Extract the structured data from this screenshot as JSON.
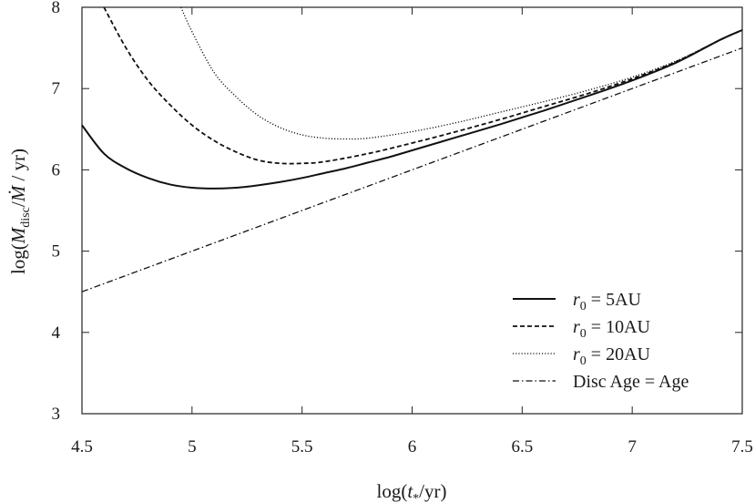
{
  "chart_data": {
    "type": "line",
    "xlabel": "log(t*/yr)",
    "ylabel": "log(M_disc/Ṁ / yr)",
    "xlim": [
      4.5,
      7.5
    ],
    "ylim": [
      3,
      8
    ],
    "xticks": [
      "4.5",
      "5",
      "5.5",
      "6",
      "6.5",
      "7",
      "7.5"
    ],
    "yticks": [
      "3",
      "4",
      "5",
      "6",
      "7",
      "8"
    ],
    "grid": false,
    "legend_position": "bottom-right",
    "series": [
      {
        "name": "r0 = 5AU",
        "style": "solid",
        "x": [
          4.5,
          4.6,
          4.7,
          4.8,
          4.9,
          5.0,
          5.1,
          5.2,
          5.3,
          5.4,
          5.5,
          5.6,
          5.7,
          5.8,
          5.9,
          6.0,
          6.2,
          6.4,
          6.6,
          6.8,
          7.0,
          7.2,
          7.4,
          7.5
        ],
        "y": [
          6.55,
          6.2,
          6.02,
          5.9,
          5.82,
          5.78,
          5.77,
          5.78,
          5.81,
          5.85,
          5.9,
          5.96,
          6.02,
          6.09,
          6.16,
          6.24,
          6.4,
          6.56,
          6.73,
          6.91,
          7.1,
          7.32,
          7.6,
          7.72
        ]
      },
      {
        "name": "r0 = 10AU",
        "style": "dashed",
        "x": [
          4.6,
          4.7,
          4.8,
          4.9,
          5.0,
          5.1,
          5.2,
          5.3,
          5.4,
          5.5,
          5.6,
          5.8,
          6.0,
          6.2,
          6.4,
          6.6,
          6.8,
          7.0,
          7.2,
          7.4,
          7.5
        ],
        "y": [
          8.0,
          7.5,
          7.1,
          6.8,
          6.55,
          6.36,
          6.22,
          6.12,
          6.08,
          6.08,
          6.1,
          6.2,
          6.33,
          6.47,
          6.62,
          6.78,
          6.94,
          7.12,
          7.33,
          7.6,
          7.72
        ]
      },
      {
        "name": "r0 = 20AU",
        "style": "dotted",
        "x": [
          4.95,
          5.0,
          5.1,
          5.2,
          5.3,
          5.4,
          5.5,
          5.6,
          5.7,
          5.8,
          6.0,
          6.2,
          6.4,
          6.6,
          6.8,
          7.0,
          7.2,
          7.4,
          7.5
        ],
        "y": [
          8.0,
          7.7,
          7.2,
          6.9,
          6.67,
          6.52,
          6.43,
          6.39,
          6.38,
          6.39,
          6.47,
          6.58,
          6.71,
          6.84,
          6.98,
          7.14,
          7.34,
          7.6,
          7.72
        ]
      },
      {
        "name": "Disc Age = Age",
        "style": "dashdot",
        "x": [
          4.5,
          7.5
        ],
        "y": [
          4.5,
          7.5
        ]
      }
    ]
  },
  "legend": {
    "items": [
      {
        "prefix": "r",
        "sub": "0",
        "rest": " = 5AU"
      },
      {
        "prefix": "r",
        "sub": "0",
        "rest": " = 10AU"
      },
      {
        "prefix": "r",
        "sub": "0",
        "rest": " = 20AU"
      },
      {
        "prefix": "",
        "sub": "",
        "rest": "Disc Age = Age"
      }
    ]
  },
  "axis_text": {
    "x_pre": "log(",
    "x_var": "t",
    "x_sub": "*",
    "x_post": "/yr)",
    "y_pre": "log(",
    "y_var": "M",
    "y_sub": "disc",
    "y_mid": "/",
    "y_var2": "Ṁ",
    "y_post": " / yr)"
  }
}
